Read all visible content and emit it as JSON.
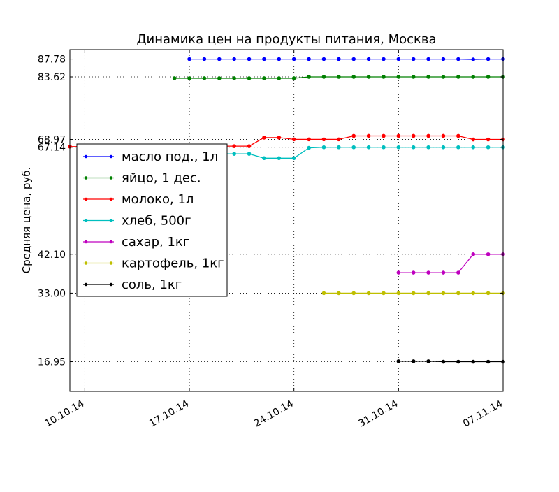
{
  "chart_data": {
    "type": "line",
    "title": "Динамика цен на продукты питания, Москва",
    "xlabel": "",
    "ylabel": "Средняя цена, руб.",
    "x_ticks": [
      "10.10.14",
      "17.10.14",
      "24.10.14",
      "31.10.14",
      "07.11.14"
    ],
    "y_ticks": [
      "16.95",
      "33.00",
      "42.10",
      "67.14",
      "68.97",
      "83.62",
      "87.78"
    ],
    "xlim": [
      "2014-10-09",
      "2014-11-07"
    ],
    "ylim": [
      10,
      90
    ],
    "grid": true,
    "legend_position": "center-left",
    "series": [
      {
        "name": "масло под., 1л",
        "color": "#0000ff",
        "x": [
          "2014-10-17",
          "2014-10-18",
          "2014-10-19",
          "2014-10-20",
          "2014-10-21",
          "2014-10-22",
          "2014-10-23",
          "2014-10-24",
          "2014-10-25",
          "2014-10-26",
          "2014-10-27",
          "2014-10-28",
          "2014-10-29",
          "2014-10-30",
          "2014-10-31",
          "2014-11-01",
          "2014-11-02",
          "2014-11-03",
          "2014-11-04",
          "2014-11-05",
          "2014-11-06",
          "2014-11-07"
        ],
        "values": [
          87.78,
          87.78,
          87.78,
          87.78,
          87.78,
          87.78,
          87.78,
          87.78,
          87.78,
          87.78,
          87.78,
          87.78,
          87.78,
          87.78,
          87.78,
          87.78,
          87.78,
          87.78,
          87.78,
          87.7,
          87.78,
          87.78
        ]
      },
      {
        "name": "яйцо, 1 дес.",
        "color": "#008000",
        "x": [
          "2014-10-16",
          "2014-10-17",
          "2014-10-18",
          "2014-10-19",
          "2014-10-20",
          "2014-10-21",
          "2014-10-22",
          "2014-10-23",
          "2014-10-24",
          "2014-10-25",
          "2014-10-26",
          "2014-10-27",
          "2014-10-28",
          "2014-10-29",
          "2014-10-30",
          "2014-10-31",
          "2014-11-01",
          "2014-11-02",
          "2014-11-03",
          "2014-11-04",
          "2014-11-05",
          "2014-11-06",
          "2014-11-07"
        ],
        "values": [
          83.3,
          83.3,
          83.3,
          83.3,
          83.3,
          83.3,
          83.3,
          83.3,
          83.3,
          83.62,
          83.62,
          83.62,
          83.62,
          83.62,
          83.62,
          83.62,
          83.62,
          83.62,
          83.62,
          83.62,
          83.62,
          83.62,
          83.62
        ]
      },
      {
        "name": "молоко, 1л",
        "color": "#ff0000",
        "x": [
          "2014-10-09",
          "2014-10-10",
          "2014-10-11",
          "2014-10-12",
          "2014-10-13",
          "2014-10-14",
          "2014-10-15",
          "2014-10-16",
          "2014-10-17",
          "2014-10-18",
          "2014-10-19",
          "2014-10-20",
          "2014-10-21",
          "2014-10-22",
          "2014-10-23",
          "2014-10-24",
          "2014-10-25",
          "2014-10-26",
          "2014-10-27",
          "2014-10-28",
          "2014-10-29",
          "2014-10-30",
          "2014-10-31",
          "2014-11-01",
          "2014-11-02",
          "2014-11-03",
          "2014-11-04",
          "2014-11-05",
          "2014-11-06",
          "2014-11-07"
        ],
        "values": [
          67.3,
          67.3,
          67.3,
          67.3,
          67.3,
          67.3,
          67.3,
          67.4,
          67.4,
          67.4,
          67.4,
          67.4,
          67.4,
          69.4,
          69.4,
          69.0,
          69.0,
          69.0,
          69.0,
          69.8,
          69.8,
          69.8,
          69.8,
          69.8,
          69.8,
          69.8,
          69.8,
          68.97,
          68.97,
          68.97
        ]
      },
      {
        "name": "хлеб, 500г",
        "color": "#00bfbf",
        "x": [
          "2014-10-18",
          "2014-10-19",
          "2014-10-20",
          "2014-10-21",
          "2014-10-22",
          "2014-10-23",
          "2014-10-24",
          "2014-10-25",
          "2014-10-26",
          "2014-10-27",
          "2014-10-28",
          "2014-10-29",
          "2014-10-30",
          "2014-10-31",
          "2014-11-01",
          "2014-11-02",
          "2014-11-03",
          "2014-11-04",
          "2014-11-05",
          "2014-11-06",
          "2014-11-07"
        ],
        "values": [
          65.6,
          65.6,
          65.6,
          65.6,
          64.6,
          64.6,
          64.6,
          67.0,
          67.14,
          67.14,
          67.14,
          67.14,
          67.14,
          67.14,
          67.14,
          67.14,
          67.14,
          67.14,
          67.14,
          67.14,
          67.14
        ]
      },
      {
        "name": "сахар, 1кг",
        "color": "#bf00bf",
        "x": [
          "2014-10-31",
          "2014-11-01",
          "2014-11-02",
          "2014-11-03",
          "2014-11-04",
          "2014-11-05",
          "2014-11-06",
          "2014-11-07"
        ],
        "values": [
          37.8,
          37.8,
          37.8,
          37.8,
          37.8,
          42.1,
          42.1,
          42.1
        ]
      },
      {
        "name": "картофель, 1кг",
        "color": "#bfbf00",
        "x": [
          "2014-10-26",
          "2014-10-27",
          "2014-10-28",
          "2014-10-29",
          "2014-10-30",
          "2014-10-31",
          "2014-11-01",
          "2014-11-02",
          "2014-11-03",
          "2014-11-04",
          "2014-11-05",
          "2014-11-06",
          "2014-11-07"
        ],
        "values": [
          33.0,
          33.0,
          33.0,
          33.0,
          33.0,
          33.0,
          33.0,
          33.0,
          33.0,
          33.0,
          33.0,
          33.0,
          33.0
        ]
      },
      {
        "name": "соль, 1кг",
        "color": "#000000",
        "x": [
          "2014-10-31",
          "2014-11-01",
          "2014-11-02",
          "2014-11-03",
          "2014-11-04",
          "2014-11-05",
          "2014-11-06",
          "2014-11-07"
        ],
        "values": [
          17.05,
          17.05,
          17.05,
          16.95,
          16.95,
          16.95,
          16.95,
          16.95
        ]
      }
    ]
  }
}
